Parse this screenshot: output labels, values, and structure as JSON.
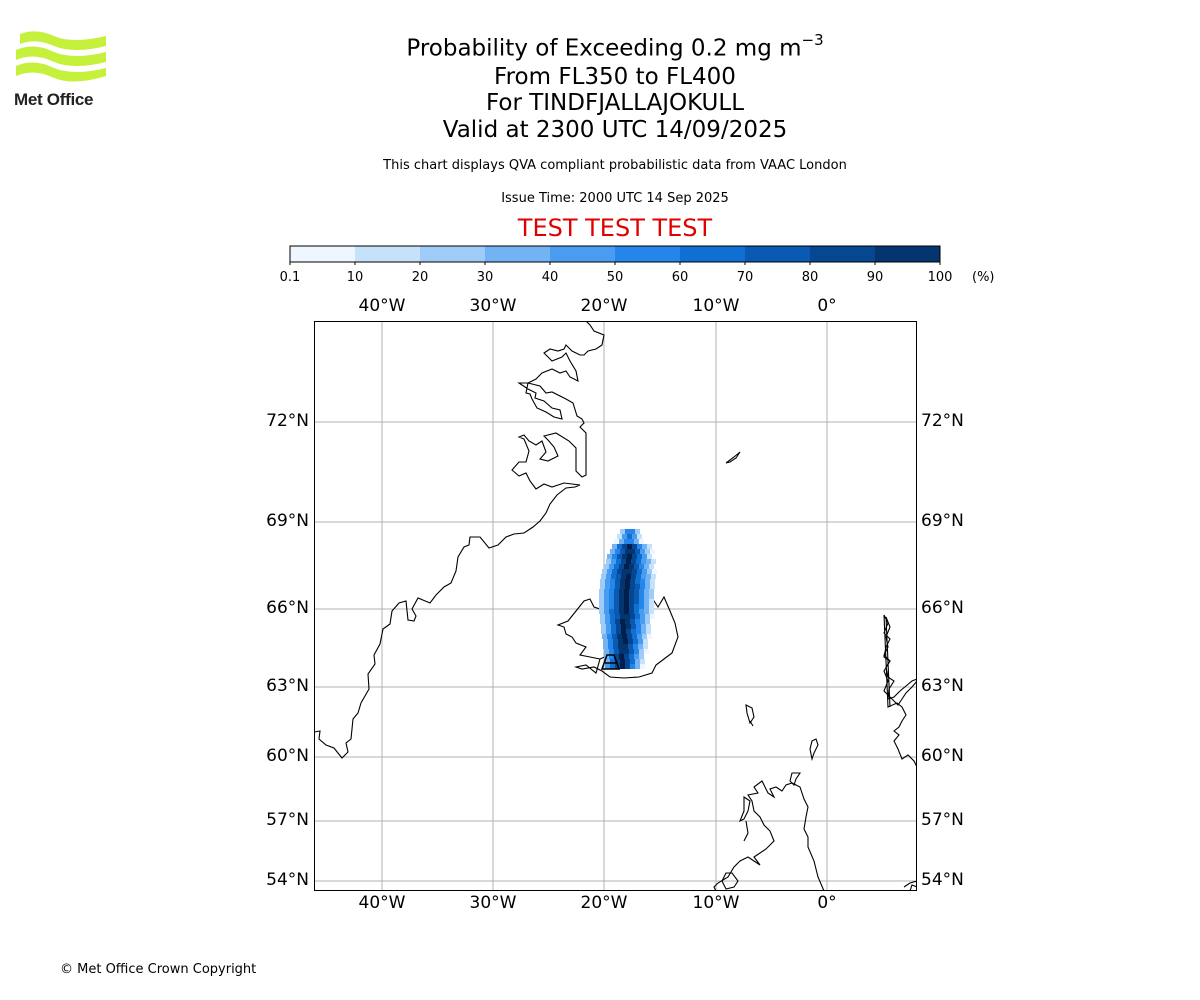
{
  "logo": {
    "text": "Met Office"
  },
  "titles": {
    "line1_prefix": "Probability of Exceeding 0.2 mg m",
    "line1_exponent": "−3",
    "line2": "From FL350 to FL400",
    "line3": "For TINDFJALLAJOKULL",
    "line4": "Valid at 2300 UTC 14/09/2025"
  },
  "note": "This chart displays QVA compliant probabilistic data from VAAC London",
  "issue_time": "Issue Time: 2000 UTC 14 Sep 2025",
  "test_banner": "TEST TEST TEST",
  "colorbar": {
    "unit": "(%)",
    "labels": [
      "0.1",
      "10",
      "20",
      "30",
      "40",
      "50",
      "60",
      "70",
      "80",
      "90",
      "100"
    ],
    "colors": [
      "#eef6ff",
      "#c6e2fb",
      "#9ecbf7",
      "#73b2f3",
      "#4a9cf0",
      "#2486ea",
      "#0f6fd2",
      "#0a5ab3",
      "#064792",
      "#03356f",
      "#001f4d"
    ]
  },
  "map": {
    "lon_labels": [
      "40°W",
      "30°W",
      "20°W",
      "10°W",
      "0°"
    ],
    "lat_labels": [
      "72°N",
      "69°N",
      "66°N",
      "63°N",
      "60°N",
      "57°N",
      "54°N"
    ],
    "grid_color": "#b0b0b0",
    "volcano": "TINDFJALLAJOKULL",
    "plume_peak_probability": "90-100"
  },
  "copyright": "© Met Office Crown Copyright"
}
